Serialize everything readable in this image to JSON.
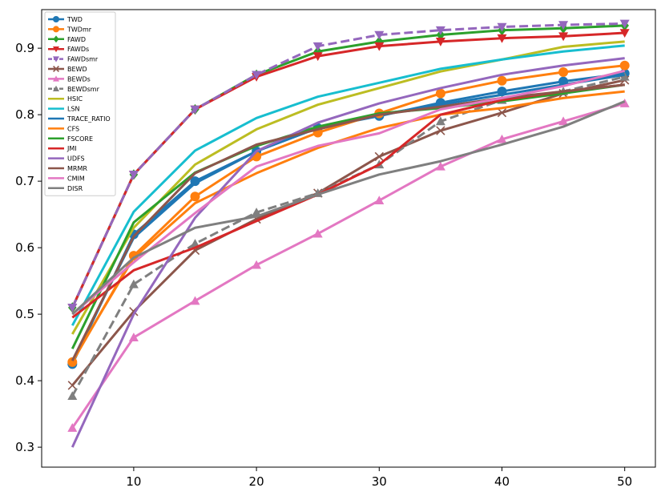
{
  "chart_data": {
    "type": "line",
    "title": "",
    "xlabel": "",
    "ylabel": "",
    "x": [
      5,
      10,
      15,
      20,
      25,
      30,
      35,
      40,
      45,
      50
    ],
    "xlim": [
      2.5,
      52.5
    ],
    "ylim": [
      0.27,
      0.958
    ],
    "xticks": [
      10,
      20,
      30,
      40,
      50
    ],
    "xtick_labels": [
      "10",
      "20",
      "30",
      "40",
      "50"
    ],
    "yticks": [
      0.3,
      0.4,
      0.5,
      0.6,
      0.7,
      0.8,
      0.9
    ],
    "ytick_labels": [
      "0.3",
      "0.4",
      "0.5",
      "0.6",
      "0.7",
      "0.8",
      "0.9"
    ],
    "legend_position": "top-left",
    "series": [
      {
        "name": "TWD",
        "color": "#1f77b4",
        "marker": "circle",
        "dash": "solid",
        "values": [
          0.425,
          0.62,
          0.7,
          0.745,
          0.78,
          0.798,
          0.818,
          0.835,
          0.85,
          0.862
        ]
      },
      {
        "name": "TWDmr",
        "color": "#ff7f0e",
        "marker": "circle",
        "dash": "solid",
        "values": [
          0.428,
          0.588,
          0.677,
          0.737,
          0.773,
          0.802,
          0.832,
          0.851,
          0.864,
          0.874
        ]
      },
      {
        "name": "FAWD",
        "color": "#2ca02c",
        "marker": "diamond",
        "dash": "solid",
        "values": [
          0.51,
          0.71,
          0.808,
          0.86,
          0.895,
          0.91,
          0.92,
          0.927,
          0.93,
          0.934
        ]
      },
      {
        "name": "FAWDs",
        "color": "#d62728",
        "marker": "triangle-down",
        "dash": "solid",
        "values": [
          0.51,
          0.71,
          0.808,
          0.857,
          0.888,
          0.903,
          0.91,
          0.915,
          0.918,
          0.923
        ]
      },
      {
        "name": "FAWDsmr",
        "color": "#9467bd",
        "marker": "triangle-down",
        "dash": "dashed",
        "values": [
          0.51,
          0.71,
          0.808,
          0.86,
          0.903,
          0.92,
          0.927,
          0.932,
          0.935,
          0.937
        ]
      },
      {
        "name": "BEWD",
        "color": "#8c564b",
        "marker": "x",
        "dash": "solid",
        "values": [
          0.393,
          0.504,
          0.596,
          0.643,
          0.682,
          0.737,
          0.776,
          0.803,
          0.832,
          0.852
        ]
      },
      {
        "name": "BEWDs",
        "color": "#e377c2",
        "marker": "triangle-up",
        "dash": "solid",
        "values": [
          0.329,
          0.465,
          0.52,
          0.574,
          0.621,
          0.671,
          0.722,
          0.763,
          0.79,
          0.817
        ]
      },
      {
        "name": "BEWDsmr",
        "color": "#7f7f7f",
        "marker": "triangle-up",
        "dash": "dashed",
        "values": [
          0.377,
          0.545,
          0.606,
          0.653,
          0.682,
          0.725,
          0.79,
          0.822,
          0.835,
          0.857
        ]
      },
      {
        "name": "HSIC",
        "color": "#bcbd22",
        "marker": "none",
        "dash": "solid",
        "values": [
          0.47,
          0.63,
          0.725,
          0.778,
          0.815,
          0.84,
          0.865,
          0.883,
          0.902,
          0.91
        ]
      },
      {
        "name": "LSN",
        "color": "#17becf",
        "marker": "none",
        "dash": "solid",
        "values": [
          0.483,
          0.654,
          0.746,
          0.795,
          0.827,
          0.848,
          0.869,
          0.883,
          0.895,
          0.904
        ]
      },
      {
        "name": "TRACE_RATIO",
        "color": "#1f77b4",
        "marker": "none",
        "dash": "solid",
        "values": [
          0.43,
          0.615,
          0.697,
          0.745,
          0.78,
          0.8,
          0.815,
          0.83,
          0.845,
          0.86
        ]
      },
      {
        "name": "CFS",
        "color": "#ff7f0e",
        "marker": "none",
        "dash": "solid",
        "values": [
          0.43,
          0.585,
          0.667,
          0.712,
          0.75,
          0.78,
          0.8,
          0.81,
          0.825,
          0.835
        ]
      },
      {
        "name": "FSCORE",
        "color": "#2ca02c",
        "marker": "none",
        "dash": "solid",
        "values": [
          0.448,
          0.638,
          0.713,
          0.753,
          0.782,
          0.802,
          0.81,
          0.82,
          0.832,
          0.845
        ]
      },
      {
        "name": "JMI",
        "color": "#d62728",
        "marker": "none",
        "dash": "solid",
        "values": [
          0.495,
          0.566,
          0.6,
          0.64,
          0.68,
          0.725,
          0.8,
          0.822,
          0.835,
          0.845
        ]
      },
      {
        "name": "UDFS",
        "color": "#9467bd",
        "marker": "none",
        "dash": "solid",
        "values": [
          0.3,
          0.5,
          0.645,
          0.745,
          0.788,
          0.817,
          0.84,
          0.86,
          0.874,
          0.885
        ]
      },
      {
        "name": "MRMR",
        "color": "#8c564b",
        "marker": "none",
        "dash": "solid",
        "values": [
          0.43,
          0.617,
          0.712,
          0.755,
          0.778,
          0.8,
          0.812,
          0.825,
          0.835,
          0.845
        ]
      },
      {
        "name": "CMIM",
        "color": "#e377c2",
        "marker": "none",
        "dash": "solid",
        "values": [
          0.5,
          0.578,
          0.652,
          0.722,
          0.753,
          0.772,
          0.808,
          0.825,
          0.843,
          0.866
        ]
      },
      {
        "name": "DISR",
        "color": "#7f7f7f",
        "marker": "none",
        "dash": "solid",
        "values": [
          0.5,
          0.585,
          0.63,
          0.647,
          0.68,
          0.71,
          0.73,
          0.755,
          0.782,
          0.82
        ]
      }
    ]
  }
}
